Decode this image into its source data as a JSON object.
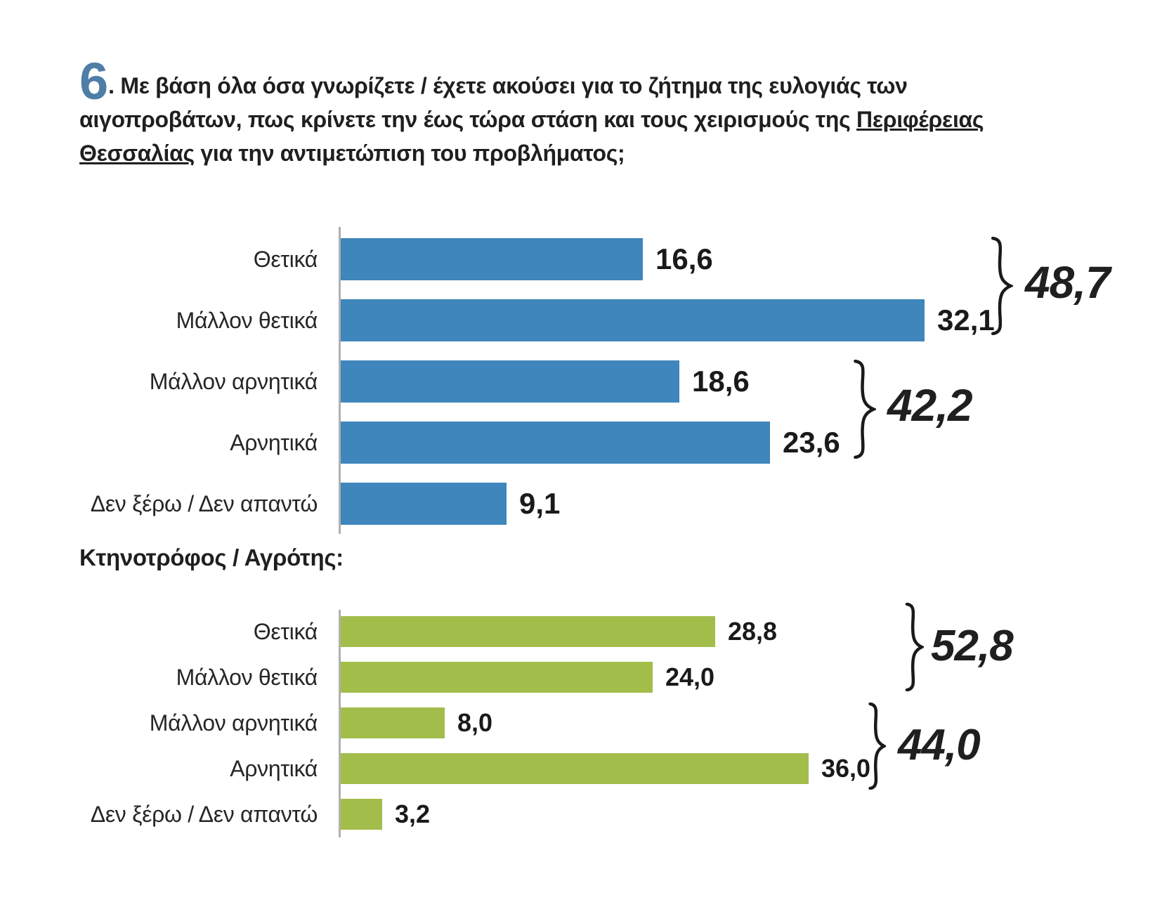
{
  "title": {
    "number": "6",
    "pre_underline": ". Με βάση όλα όσα γνωρίζετε / έχετε ακούσει για το ζήτημα της ευλογιάς των αιγοπροβάτων, πως κρίνετε την έως τώρα στάση και τους χειρισμούς της ",
    "underlined": "Περιφέρειας Θεσσαλίας",
    "post_underline": " για την αντιμετώπιση του προβλήματος;"
  },
  "subgroup_label": "Κτηνοτρόφος / Αγρότης:",
  "colors": {
    "question_number": "#4e7da6",
    "bar_blue": "#3e86bb",
    "bar_green": "#a3bd4b",
    "axis_gray": "#b0b0b0",
    "text_dark": "#1a1a1a"
  },
  "chart_data": [
    {
      "type": "bar",
      "orientation": "horizontal",
      "group": "overall",
      "bar_color": "#3e86bb",
      "categories": [
        "Θετικά",
        "Μάλλον θετικά",
        "Μάλλον αρνητικά",
        "Αρνητικά",
        "Δεν ξέρω / Δεν απαντώ"
      ],
      "values": [
        16.6,
        32.1,
        18.6,
        23.6,
        9.1
      ],
      "value_labels": [
        "16,6",
        "32,1",
        "18,6",
        "23,6",
        "9,1"
      ],
      "xlim": [
        0,
        35
      ],
      "grid": false,
      "legend": false,
      "annotations": [
        {
          "label": "48,7",
          "value": 48.7,
          "covers": [
            "Θετικά",
            "Μάλλον θετικά"
          ]
        },
        {
          "label": "42,2",
          "value": 42.2,
          "covers": [
            "Μάλλον αρνητικά",
            "Αρνητικά"
          ]
        }
      ]
    },
    {
      "type": "bar",
      "orientation": "horizontal",
      "group": "Κτηνοτρόφος / Αγρότης",
      "bar_color": "#a3bd4b",
      "categories": [
        "Θετικά",
        "Μάλλον θετικά",
        "Μάλλον αρνητικά",
        "Αρνητικά",
        "Δεν ξέρω / Δεν απαντώ"
      ],
      "values": [
        28.8,
        24.0,
        8.0,
        36.0,
        3.2
      ],
      "value_labels": [
        "28,8",
        "24,0",
        "8,0",
        "36,0",
        "3,2"
      ],
      "xlim": [
        0,
        50
      ],
      "grid": false,
      "legend": false,
      "annotations": [
        {
          "label": "52,8",
          "value": 52.8,
          "covers": [
            "Θετικά",
            "Μάλλον θετικά"
          ]
        },
        {
          "label": "44,0",
          "value": 44.0,
          "covers": [
            "Μάλλον αρνητικά",
            "Αρνητικά"
          ]
        }
      ]
    }
  ]
}
